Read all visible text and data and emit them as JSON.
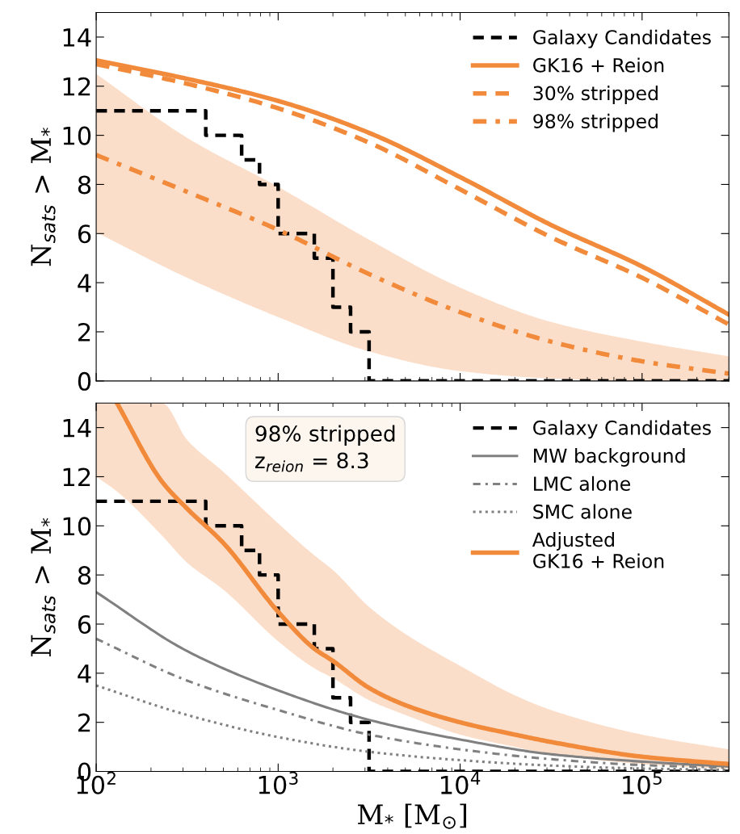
{
  "chart_data": [
    {
      "type": "line",
      "ylabel": "N$_{sats}$ > M$_{*}$",
      "log": "x",
      "xlim": [
        100,
        300000
      ],
      "ylim": [
        0,
        15
      ],
      "xticks": [
        {
          "value": 100,
          "label": null
        },
        {
          "value": 1000,
          "label": null
        },
        {
          "value": 10000,
          "label": null
        },
        {
          "value": 100000,
          "label": null
        }
      ],
      "yticks": [
        0,
        2,
        4,
        6,
        8,
        10,
        12,
        14
      ],
      "tick_labels": "y",
      "legend": "top right",
      "grid": false,
      "series": [
        {
          "name": "Galaxy Candidates",
          "type": "step",
          "color": "#000000",
          "line_style": "dashed",
          "x": [
            100,
            400,
            630,
            790,
            1000,
            1580,
            2000,
            2500,
            3160,
            300000
          ],
          "values": [
            11,
            10,
            9,
            8,
            6,
            5,
            3,
            2,
            0,
            0
          ]
        },
        {
          "name": "GK16 + Reion",
          "color": "#f28a3c",
          "line_style": "solid",
          "x": [
            100,
            316,
            1000,
            3162,
            10000,
            31623,
            100000,
            300000
          ],
          "values": [
            13.05,
            12.3,
            11.4,
            10.1,
            8.3,
            6.35,
            4.66,
            2.7
          ]
        },
        {
          "name": "30% stripped",
          "color": "#f28a3c",
          "line_style": "dashed",
          "x": [
            100,
            316,
            1000,
            3162,
            10000,
            31623,
            100000,
            300000
          ],
          "values": [
            12.9,
            12.1,
            11.1,
            9.7,
            7.8,
            5.85,
            4.2,
            2.3
          ]
        },
        {
          "name": "98% stripped",
          "color": "#f28a3c",
          "line_style": "dashdot",
          "x": [
            100,
            316,
            1000,
            3162,
            10000,
            31623,
            100000,
            300000
          ],
          "values": [
            9.2,
            7.7,
            6.15,
            4.35,
            2.8,
            1.6,
            0.8,
            0.3
          ],
          "lower": [
            6.05,
            4.2,
            2.6,
            1.2,
            0.4,
            0.1,
            0,
            0
          ],
          "upper": [
            12.5,
            9.9,
            7.9,
            5.75,
            3.8,
            2.4,
            1.6,
            1.0
          ]
        }
      ]
    },
    {
      "type": "line",
      "ylabel": "N$_{sats}$ > M$_{*}$",
      "xlabel": "M$_{*}$ [M$_{⊙}$]",
      "log": "x",
      "xlim": [
        100,
        300000
      ],
      "ylim": [
        0,
        15
      ],
      "xticks": [
        {
          "value": 100,
          "label": "10$^{2}$"
        },
        {
          "value": 1000,
          "label": "10$^{3}$"
        },
        {
          "value": 10000,
          "label": "10$^{4}$"
        },
        {
          "value": 100000,
          "label": "10$^{5}$"
        }
      ],
      "yticks": [
        0,
        2,
        4,
        6,
        8,
        10,
        12,
        14
      ],
      "legend": "top right",
      "grid": false,
      "annotations": [
        "98% stripped\nz$_{reion}$ = 8.3"
      ],
      "series": [
        {
          "name": "Galaxy Candidates",
          "type": "step",
          "color": "#000000",
          "line_style": "dashed",
          "x": [
            100,
            400,
            630,
            790,
            1000,
            1580,
            2000,
            2500,
            3160,
            300000
          ],
          "values": [
            11,
            10,
            9,
            8,
            6,
            5,
            3,
            2,
            0,
            0
          ]
        },
        {
          "name": "MW background",
          "color": "#808080",
          "line_style": "solid",
          "x": [
            100,
            316,
            1000,
            3162,
            10000,
            31623,
            100000,
            300000
          ],
          "values": [
            7.3,
            4.9,
            3.3,
            2.1,
            1.3,
            0.7,
            0.4,
            0.2
          ]
        },
        {
          "name": "LMC alone",
          "color": "#808080",
          "line_style": "dashdot",
          "x": [
            100,
            316,
            1000,
            3162,
            10000,
            31623,
            100000,
            300000
          ],
          "values": [
            5.4,
            3.7,
            2.5,
            1.5,
            0.9,
            0.5,
            0.26,
            0.15
          ]
        },
        {
          "name": "SMC alone",
          "color": "#808080",
          "line_style": "dotted",
          "x": [
            100,
            316,
            1000,
            3162,
            10000,
            31623,
            100000,
            300000
          ],
          "values": [
            3.5,
            2.3,
            1.4,
            0.8,
            0.46,
            0.24,
            0.12,
            0.06
          ]
        },
        {
          "name": "Adjusted\nGK16 + Reion",
          "color": "#f28a3c",
          "line_style": "solid",
          "x": [
            100,
            130,
            230,
            316,
            500,
            1000,
            1580,
            2000,
            3162,
            5000,
            10000,
            20000,
            31623,
            100000,
            300000
          ],
          "values": [
            null,
            15,
            11.8,
            10.7,
            9.3,
            6.5,
            5.0,
            4.5,
            3.4,
            2.7,
            2.0,
            1.5,
            1.2,
            0.6,
            0.3
          ],
          "lower": [
            12.0,
            11.4,
            9.6,
            8.5,
            7.4,
            5.3,
            4.2,
            3.8,
            2.9,
            2.3,
            1.5,
            1.0,
            0.7,
            0.3,
            0.1
          ],
          "upper": [
            15,
            15,
            15,
            13.5,
            12.2,
            10.1,
            8.8,
            8.2,
            6.7,
            5.6,
            4.3,
            3.1,
            2.5,
            1.5,
            0.9
          ]
        }
      ]
    }
  ]
}
